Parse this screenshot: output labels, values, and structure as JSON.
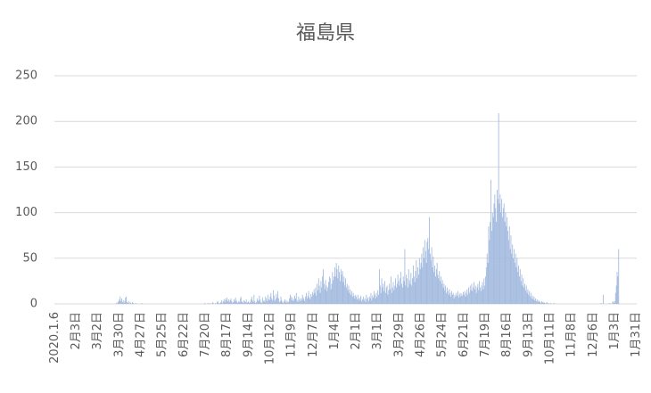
{
  "chart_data": {
    "type": "bar",
    "title": "福島県",
    "color": "#a3badf",
    "ylim": [
      0,
      250
    ],
    "yticks": [
      0,
      50,
      100,
      150,
      200,
      250
    ],
    "grid": true,
    "categories": [
      "2020.1.6",
      null,
      null,
      null,
      null,
      null,
      null,
      null,
      null,
      null,
      null,
      null,
      null,
      null,
      null,
      null,
      null,
      null,
      null,
      null,
      null,
      null,
      null,
      null,
      null,
      null,
      null,
      null,
      "2月3日",
      null,
      null,
      null,
      null,
      null,
      null,
      null,
      null,
      null,
      null,
      null,
      null,
      null,
      null,
      null,
      null,
      null,
      null,
      null,
      null,
      null,
      null,
      null,
      null,
      null,
      null,
      null,
      "3月2日",
      null,
      null,
      null,
      null,
      null,
      null,
      null,
      null,
      null,
      null,
      null,
      null,
      null,
      null,
      null,
      null,
      null,
      null,
      null,
      null,
      null,
      null,
      null,
      null,
      null,
      null,
      null,
      "3月30日",
      null,
      null,
      null,
      null,
      null,
      null,
      null,
      null,
      null,
      null,
      null,
      null,
      null,
      null,
      null,
      null,
      null,
      null,
      null,
      null,
      null,
      null,
      null,
      null,
      null,
      null,
      null,
      "4月27日",
      null,
      null,
      null,
      null,
      null,
      null,
      null,
      null,
      null,
      null,
      null,
      null,
      null,
      null,
      null,
      null,
      null,
      null,
      null,
      null,
      null,
      null,
      null,
      null,
      null,
      null,
      null,
      "5月25日",
      null,
      null,
      null,
      null,
      null,
      null,
      null,
      null,
      null,
      null,
      null,
      null,
      null,
      null,
      null,
      null,
      null,
      null,
      null,
      null,
      null,
      null,
      null,
      null,
      null,
      null,
      null,
      "6月22日",
      null,
      null,
      null,
      null,
      null,
      null,
      null,
      null,
      null,
      null,
      null,
      null,
      null,
      null,
      null,
      null,
      null,
      null,
      null,
      null,
      null,
      null,
      null,
      null,
      null,
      null,
      null,
      "7月20日",
      null,
      null,
      null,
      null,
      null,
      null,
      null,
      null,
      null,
      null,
      null,
      null,
      null,
      null,
      null,
      null,
      null,
      null,
      null,
      null,
      null,
      null,
      null,
      null,
      null,
      null,
      null,
      "8月17日",
      null,
      null,
      null,
      null,
      null,
      null,
      null,
      null,
      null,
      null,
      null,
      null,
      null,
      null,
      null,
      null,
      null,
      null,
      null,
      null,
      null,
      null,
      null,
      null,
      null,
      null,
      null,
      "9月14日",
      null,
      null,
      null,
      null,
      null,
      null,
      null,
      null,
      null,
      null,
      null,
      null,
      null,
      null,
      null,
      null,
      null,
      null,
      null,
      null,
      null,
      null,
      null,
      null,
      null,
      null,
      null,
      "10月12日",
      null,
      null,
      null,
      null,
      null,
      null,
      null,
      null,
      null,
      null,
      null,
      null,
      null,
      null,
      null,
      null,
      null,
      null,
      null,
      null,
      null,
      null,
      null,
      null,
      null,
      null,
      null,
      "11月9日",
      null,
      null,
      null,
      null,
      null,
      null,
      null,
      null,
      null,
      null,
      null,
      null,
      null,
      null,
      null,
      null,
      null,
      null,
      null,
      null,
      null,
      null,
      null,
      null,
      null,
      null,
      null,
      "12月7日",
      null,
      null,
      null,
      null,
      null,
      null,
      null,
      null,
      null,
      null,
      null,
      null,
      null,
      null,
      null,
      null,
      null,
      null,
      null,
      null,
      null,
      null,
      null,
      null,
      null,
      null,
      null,
      "1月4日",
      null,
      null,
      null,
      null,
      null,
      null,
      null,
      null,
      null,
      null,
      null,
      null,
      null,
      null,
      null,
      null,
      null,
      null,
      null,
      null,
      null,
      null,
      null,
      null,
      null,
      null,
      null,
      "2月1日",
      null,
      null,
      null,
      null,
      null,
      null,
      null,
      null,
      null,
      null,
      null,
      null,
      null,
      null,
      null,
      null,
      null,
      null,
      null,
      null,
      null,
      null,
      null,
      null,
      null,
      null,
      null,
      "3月1日",
      null,
      null,
      null,
      null,
      null,
      null,
      null,
      null,
      null,
      null,
      null,
      null,
      null,
      null,
      null,
      null,
      null,
      null,
      null,
      null,
      null,
      null,
      null,
      null,
      null,
      null,
      null,
      "3月29日",
      null,
      null,
      null,
      null,
      null,
      null,
      null,
      null,
      null,
      null,
      null,
      null,
      null,
      null,
      null,
      null,
      null,
      null,
      null,
      null,
      null,
      null,
      null,
      null,
      null,
      null,
      null,
      "4月26日",
      null,
      null,
      null,
      null,
      null,
      null,
      null,
      null,
      null,
      null,
      null,
      null,
      null,
      null,
      null,
      null,
      null,
      null,
      null,
      null,
      null,
      null,
      null,
      null,
      null,
      null,
      null,
      "5月24日",
      null,
      null,
      null,
      null,
      null,
      null,
      null,
      null,
      null,
      null,
      null,
      null,
      null,
      null,
      null,
      null,
      null,
      null,
      null,
      null,
      null,
      null,
      null,
      null,
      null,
      null,
      null,
      "6月21日",
      null,
      null,
      null,
      null,
      null,
      null,
      null,
      null,
      null,
      null,
      null,
      null,
      null,
      null,
      null,
      null,
      null,
      null,
      null,
      null,
      null,
      null,
      null,
      null,
      null,
      null,
      null,
      "7月19日",
      null,
      null,
      null,
      null,
      null,
      null,
      null,
      null,
      null,
      null,
      null,
      null,
      null,
      null,
      null,
      null,
      null,
      null,
      null,
      null,
      null,
      null,
      null,
      null,
      null,
      null,
      null,
      "8月16日",
      null,
      null,
      null,
      null,
      null,
      null,
      null,
      null,
      null,
      null,
      null,
      null,
      null,
      null,
      null,
      null,
      null,
      null,
      null,
      null,
      null,
      null,
      null,
      null,
      null,
      null,
      null,
      "9月13日",
      null,
      null,
      null,
      null,
      null,
      null,
      null,
      null,
      null,
      null,
      null,
      null,
      null,
      null,
      null,
      null,
      null,
      null,
      null,
      null,
      null,
      null,
      null,
      null,
      null,
      null,
      null,
      "10月11日",
      null,
      null,
      null,
      null,
      null,
      null,
      null,
      null,
      null,
      null,
      null,
      null,
      null,
      null,
      null,
      null,
      null,
      null,
      null,
      null,
      null,
      null,
      null,
      null,
      null,
      null,
      null,
      "11月8日",
      null,
      null,
      null,
      null,
      null,
      null,
      null,
      null,
      null,
      null,
      null,
      null,
      null,
      null,
      null,
      null,
      null,
      null,
      null,
      null,
      null,
      null,
      null,
      null,
      null,
      null,
      null,
      "12月6日",
      null,
      null,
      null,
      null,
      null,
      null,
      null,
      null,
      null,
      null,
      null,
      null,
      null,
      null,
      null,
      null,
      null,
      null,
      null,
      null,
      null,
      null,
      null,
      null,
      null,
      null,
      null,
      "1月3日",
      null,
      null,
      null,
      null,
      null,
      null,
      null,
      null,
      null,
      null,
      null,
      null,
      null,
      null,
      null,
      null,
      null,
      null,
      null,
      null,
      null,
      null,
      null,
      null,
      null,
      null,
      null,
      "1月31日"
    ],
    "values": [
      0,
      0,
      0,
      0,
      0,
      0,
      0,
      0,
      0,
      0,
      0,
      0,
      0,
      0,
      0,
      0,
      0,
      0,
      0,
      0,
      0,
      0,
      0,
      0,
      0,
      0,
      0,
      0,
      0,
      0,
      0,
      0,
      0,
      0,
      0,
      0,
      0,
      0,
      0,
      0,
      0,
      0,
      0,
      0,
      0,
      0,
      0,
      0,
      0,
      0,
      0,
      0,
      0,
      0,
      0,
      0,
      0,
      0,
      0,
      0,
      0,
      0,
      0,
      0,
      0,
      0,
      0,
      0,
      0,
      0,
      0,
      0,
      0,
      0,
      0,
      0,
      0,
      0,
      0,
      0,
      1,
      0,
      2,
      3,
      5,
      8,
      3,
      6,
      2,
      4,
      1,
      3,
      7,
      8,
      2,
      1,
      3,
      0,
      2,
      1,
      0,
      2,
      1,
      0,
      0,
      1,
      0,
      0,
      0,
      0,
      0,
      0,
      0,
      1,
      0,
      0,
      0,
      0,
      0,
      0,
      0,
      0,
      0,
      0,
      0,
      0,
      0,
      0,
      0,
      0,
      0,
      0,
      0,
      0,
      0,
      0,
      0,
      0,
      0,
      0,
      0,
      0,
      0,
      0,
      0,
      0,
      0,
      0,
      0,
      0,
      0,
      0,
      0,
      0,
      0,
      0,
      0,
      0,
      0,
      0,
      0,
      0,
      0,
      0,
      0,
      0,
      0,
      0,
      0,
      0,
      0,
      0,
      0,
      0,
      0,
      0,
      0,
      0,
      0,
      0,
      0,
      0,
      0,
      0,
      0,
      0,
      0,
      0,
      0,
      0,
      0,
      0,
      0,
      0,
      0,
      1,
      0,
      0,
      0,
      1,
      0,
      0,
      1,
      0,
      0,
      2,
      1,
      0,
      0,
      1,
      0,
      2,
      3,
      1,
      0,
      1,
      2,
      4,
      1,
      3,
      5,
      2,
      6,
      4,
      7,
      3,
      5,
      2,
      4,
      6,
      3,
      1,
      2,
      5,
      3,
      7,
      4,
      2,
      1,
      3,
      2,
      6,
      8,
      3,
      2,
      1,
      4,
      3,
      2,
      5,
      1,
      2,
      3,
      1,
      2,
      5,
      8,
      4,
      2,
      10,
      3,
      1,
      2,
      6,
      4,
      3,
      9,
      5,
      2,
      1,
      7,
      3,
      4,
      2,
      8,
      6,
      3,
      10,
      5,
      4,
      8,
      12,
      6,
      4,
      15,
      9,
      3,
      5,
      11,
      7,
      14,
      6,
      2,
      3,
      8,
      4,
      2,
      1,
      3,
      5,
      2,
      4,
      1,
      3,
      2,
      6,
      10,
      8,
      4,
      7,
      3,
      5,
      9,
      6,
      12,
      4,
      2,
      8,
      5,
      3,
      6,
      4,
      10,
      7,
      5,
      3,
      8,
      12,
      6,
      9,
      14,
      7,
      5,
      11,
      8,
      13,
      10,
      16,
      12,
      18,
      9,
      22,
      15,
      28,
      20,
      12,
      25,
      18,
      30,
      38,
      22,
      16,
      26,
      20,
      14,
      18,
      24,
      30,
      28,
      16,
      22,
      35,
      26,
      30,
      40,
      30,
      45,
      38,
      28,
      42,
      35,
      25,
      38,
      32,
      36,
      24,
      30,
      20,
      28,
      18,
      22,
      15,
      20,
      12,
      16,
      10,
      14,
      8,
      12,
      9,
      6,
      10,
      8,
      5,
      10,
      6,
      4,
      7,
      9,
      3,
      5,
      8,
      4,
      6,
      2,
      10,
      5,
      7,
      3,
      8,
      6,
      12,
      4,
      9,
      7,
      14,
      10,
      6,
      12,
      8,
      15,
      10,
      38,
      20,
      12,
      28,
      18,
      22,
      14,
      25,
      12,
      18,
      20,
      10,
      15,
      22,
      16,
      30,
      12,
      18,
      24,
      15,
      20,
      28,
      18,
      22,
      32,
      25,
      20,
      28,
      35,
      22,
      18,
      30,
      25,
      60,
      20,
      32,
      28,
      18,
      38,
      26,
      22,
      34,
      20,
      28,
      42,
      30,
      24,
      36,
      48,
      28,
      40,
      32,
      50,
      38,
      45,
      55,
      40,
      62,
      50,
      70,
      58,
      45,
      68,
      72,
      60,
      95,
      55,
      48,
      62,
      40,
      52,
      35,
      42,
      30,
      38,
      45,
      32,
      28,
      36,
      25,
      30,
      22,
      26,
      18,
      22,
      15,
      20,
      12,
      18,
      14,
      10,
      16,
      12,
      8,
      14,
      10,
      12,
      6,
      10,
      8,
      12,
      9,
      14,
      7,
      10,
      12,
      8,
      11,
      9,
      13,
      10,
      14,
      8,
      12,
      16,
      10,
      18,
      12,
      20,
      15,
      22,
      14,
      18,
      24,
      16,
      20,
      12,
      18,
      22,
      15,
      25,
      18,
      14,
      20,
      24,
      16,
      28,
      20,
      30,
      40,
      55,
      45,
      85,
      70,
      90,
      136,
      80,
      100,
      95,
      110,
      120,
      105,
      90,
      125,
      115,
      209,
      110,
      120,
      100,
      115,
      95,
      105,
      110,
      90,
      100,
      85,
      95,
      80,
      70,
      85,
      60,
      75,
      55,
      65,
      50,
      60,
      45,
      55,
      40,
      50,
      35,
      42,
      30,
      38,
      25,
      32,
      20,
      28,
      18,
      22,
      15,
      20,
      12,
      16,
      10,
      14,
      8,
      12,
      6,
      9,
      5,
      8,
      4,
      6,
      3,
      5,
      2,
      4,
      3,
      2,
      1,
      3,
      2,
      1,
      2,
      1,
      0,
      1,
      2,
      0,
      1,
      0,
      0,
      1,
      0,
      0,
      0,
      1,
      0,
      0,
      0,
      0,
      0,
      0,
      0,
      0,
      0,
      0,
      0,
      0,
      0,
      0,
      0,
      0,
      0,
      0,
      0,
      0,
      0,
      0,
      0,
      0,
      0,
      0,
      0,
      0,
      0,
      0,
      0,
      0,
      0,
      0,
      0,
      0,
      0,
      0,
      0,
      0,
      0,
      0,
      0,
      0,
      0,
      0,
      0,
      0,
      0,
      0,
      0,
      0,
      0,
      0,
      0,
      0,
      0,
      0,
      0,
      0,
      1,
      0,
      0,
      10,
      0,
      0,
      0,
      0,
      0,
      0,
      0,
      1,
      0,
      0,
      0,
      2,
      3,
      1,
      3,
      12,
      20,
      35,
      30,
      60,
      null,
      null,
      null,
      null,
      null,
      null,
      null,
      null,
      null,
      null,
      null,
      null,
      null,
      null,
      null,
      null,
      null,
      null,
      null,
      null,
      null,
      null,
      null
    ]
  }
}
